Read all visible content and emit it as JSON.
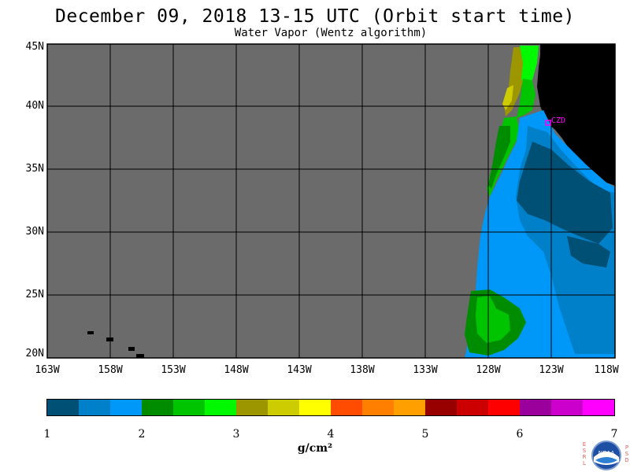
{
  "header": {
    "title": "December 09, 2018  13-15 UTC  (Orbit start time)",
    "subtitle": "Water Vapor (Wentz algorithm)"
  },
  "map": {
    "lat_labels": [
      "45N",
      "40N",
      "35N",
      "30N",
      "25N",
      "20N"
    ],
    "lon_labels": [
      "163W",
      "158W",
      "153W",
      "148W",
      "143W",
      "138W",
      "133W",
      "128W",
      "123W",
      "118W"
    ],
    "station_label": "CZD",
    "colors": {
      "no_data": "#6b6b6b",
      "land": "#000000",
      "gridline": "#000000",
      "station": "#ff00ff"
    }
  },
  "colorbar": {
    "colors": [
      "#004f74",
      "#0080c8",
      "#0098f8",
      "#008c00",
      "#00c400",
      "#00f800",
      "#9c9600",
      "#cccc00",
      "#ffff00",
      "#ff4c00",
      "#ff8000",
      "#ffa000",
      "#980000",
      "#cc0000",
      "#ff0000",
      "#9c009c",
      "#cc00cc",
      "#ff00ff"
    ],
    "tick_labels": [
      "1",
      "2",
      "3",
      "4",
      "5",
      "6",
      "7"
    ],
    "units": "g/cm²"
  },
  "logo": {
    "name": "noaa-logo",
    "left_text": "ESRL",
    "right_text": "PSD",
    "badge_text": "NOAA"
  }
}
